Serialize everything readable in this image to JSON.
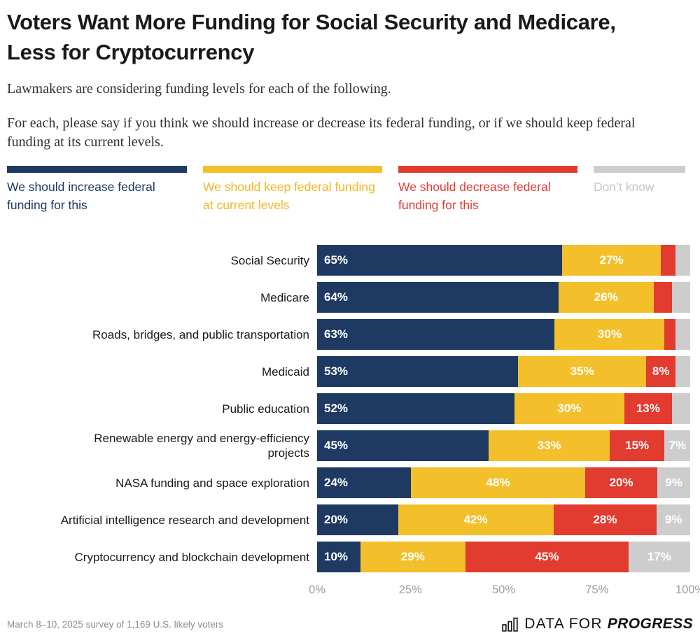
{
  "header": {
    "title": "Voters Want More Funding for Social Security and Medicare, Less for Cryptocurrency",
    "lede1": "Lawmakers are considering funding levels for each of the following.",
    "lede2": "For each, please say if you think we should increase or decrease its federal funding, or if we should keep federal funding at its current levels."
  },
  "chart_data": {
    "type": "bar",
    "orientation": "horizontal-stacked",
    "xlim": [
      0,
      100
    ],
    "x_axis_ticks": [
      {
        "label": "0%",
        "position": 0
      },
      {
        "label": "25%",
        "position": 25
      },
      {
        "label": "50%",
        "position": 50
      },
      {
        "label": "75%",
        "position": 75
      },
      {
        "label": "100%",
        "position": 100
      }
    ],
    "legend": [
      {
        "label": "We should increase federal funding for this",
        "color": "#1e3a63",
        "text_color": "#1e3a63"
      },
      {
        "label": "We should keep federal funding at current levels",
        "color": "#f3c02c",
        "text_color": "#f0b822"
      },
      {
        "label": "We should decrease federal funding for this",
        "color": "#e23b30",
        "text_color": "#e23b30"
      },
      {
        "label": "Don’t know",
        "color": "#cdcdcd",
        "text_color": "#c6c6c6"
      }
    ],
    "series_names": [
      "We should increase federal funding for this",
      "We should keep federal funding at current levels",
      "We should decrease federal funding for this",
      "Don’t know"
    ],
    "rows": [
      {
        "category": "Social Security",
        "values": [
          65,
          27,
          4,
          4
        ],
        "labels": [
          "65%",
          "27%",
          "",
          ""
        ]
      },
      {
        "category": "Medicare",
        "values": [
          64,
          26,
          5,
          5
        ],
        "labels": [
          "64%",
          "26%",
          "",
          ""
        ]
      },
      {
        "category": "Roads, bridges, and public transportation",
        "values": [
          63,
          30,
          3,
          4
        ],
        "labels": [
          "63%",
          "30%",
          "",
          ""
        ]
      },
      {
        "category": "Medicaid",
        "values": [
          53,
          35,
          8,
          4
        ],
        "labels": [
          "53%",
          "35%",
          "8%",
          ""
        ]
      },
      {
        "category": "Public education",
        "values": [
          52,
          30,
          13,
          5
        ],
        "labels": [
          "52%",
          "30%",
          "13%",
          ""
        ]
      },
      {
        "category": "Renewable energy and energy-efficiency\nprojects",
        "values": [
          45,
          33,
          15,
          7
        ],
        "labels": [
          "45%",
          "33%",
          "15%",
          "7%"
        ]
      },
      {
        "category": "NASA funding and space exploration",
        "values": [
          24,
          48,
          20,
          9
        ],
        "labels": [
          "24%",
          "48%",
          "20%",
          "9%"
        ]
      },
      {
        "category": "Artificial intelligence research and development",
        "values": [
          20,
          42,
          28,
          9
        ],
        "labels": [
          "20%",
          "42%",
          "28%",
          "9%"
        ]
      },
      {
        "category": "Cryptocurrency and blockchain development",
        "values": [
          10,
          29,
          45,
          17
        ],
        "labels": [
          "10%",
          "29%",
          "45%",
          "17%"
        ]
      }
    ]
  },
  "footer": {
    "note": "March 8–10, 2025 survey of 1,169 U.S. likely voters",
    "logo_prefix": "DATA FOR",
    "logo_suffix": "PROGRESS"
  }
}
